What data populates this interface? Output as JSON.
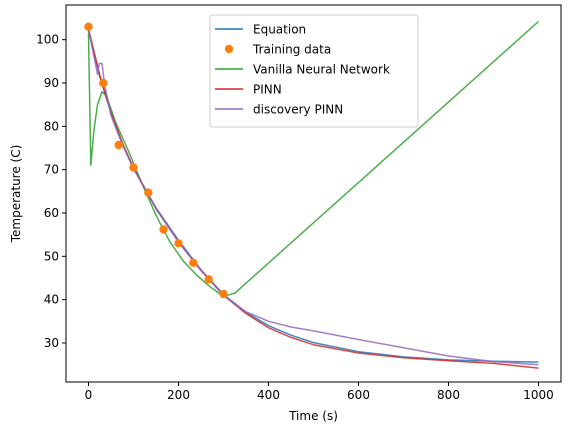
{
  "chart_data": {
    "type": "line",
    "xlabel": "Time (s)",
    "ylabel": "Temperature (C)",
    "xlim": [
      -50,
      1050
    ],
    "ylim": [
      21,
      108
    ],
    "xticks": [
      "0",
      "200",
      "400",
      "600",
      "800",
      "1000"
    ],
    "yticks": [
      "30",
      "40",
      "50",
      "60",
      "70",
      "80",
      "90",
      "100"
    ],
    "grid": false,
    "legend_position": "top-center",
    "series": [
      {
        "name": "Equation",
        "kind": "line",
        "color": "#1f77b4",
        "x": [
          0,
          25,
          50,
          75,
          100,
          150,
          200,
          250,
          300,
          350,
          400,
          450,
          500,
          600,
          700,
          800,
          900,
          1000
        ],
        "y": [
          102.0,
          91.5,
          83.0,
          76.0,
          70.3,
          61.2,
          53.7,
          46.9,
          41.2,
          37.1,
          34.0,
          31.8,
          30.1,
          28.0,
          26.8,
          26.1,
          25.8,
          25.6
        ]
      },
      {
        "name": "Training data",
        "kind": "scatter",
        "color": "#ff7f0e",
        "x": [
          0,
          33,
          67,
          100,
          133,
          167,
          200,
          233,
          267,
          300
        ],
        "y": [
          103.0,
          90.0,
          75.7,
          70.5,
          64.7,
          56.2,
          53.0,
          48.5,
          44.7,
          41.3
        ]
      },
      {
        "name": "Vanilla Neural Network",
        "kind": "line",
        "color": "#2ca02c",
        "x": [
          0,
          5,
          12,
          20,
          30,
          40,
          60,
          90,
          120,
          150,
          180,
          210,
          240,
          270,
          300,
          325,
          1000
        ],
        "y": [
          101.5,
          71.0,
          79.0,
          85.0,
          88.0,
          87.0,
          81.0,
          74.0,
          66.5,
          59.5,
          53.5,
          49.0,
          45.7,
          43.0,
          40.8,
          41.5,
          104.2
        ]
      },
      {
        "name": "PINN",
        "kind": "line",
        "color": "#d62728",
        "x": [
          0,
          25,
          50,
          75,
          100,
          150,
          200,
          250,
          300,
          350,
          400,
          450,
          500,
          600,
          700,
          800,
          900,
          1000
        ],
        "y": [
          102.5,
          91.8,
          83.2,
          76.2,
          70.4,
          61.0,
          53.3,
          46.7,
          41.0,
          36.8,
          33.5,
          31.3,
          29.6,
          27.7,
          26.6,
          25.9,
          25.3,
          24.2
        ]
      },
      {
        "name": "discovery PINN",
        "kind": "line",
        "color": "#9467bd",
        "x": [
          0,
          20,
          24,
          30,
          36,
          50,
          75,
          100,
          150,
          200,
          250,
          300,
          350,
          400,
          450,
          500,
          600,
          700,
          800,
          900,
          1000
        ],
        "y": [
          102.5,
          92.0,
          94.5,
          94.5,
          89.5,
          82.5,
          75.8,
          70.2,
          61.0,
          53.3,
          46.8,
          41.0,
          37.2,
          35.0,
          33.7,
          32.8,
          30.8,
          28.9,
          27.0,
          25.7,
          25.0
        ]
      }
    ]
  }
}
